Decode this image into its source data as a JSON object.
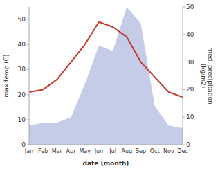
{
  "chart_data": {
    "type": "line",
    "categories": [
      "Jan",
      "Feb",
      "Mar",
      "Apr",
      "May",
      "Jun",
      "Jul",
      "Aug",
      "Sep",
      "Oct",
      "Nov",
      "Dec"
    ],
    "series": [
      {
        "type": "area",
        "axis": "y2",
        "color": "#c5cce8",
        "values": [
          7,
          8,
          8,
          10,
          22,
          36,
          34,
          50,
          44,
          14,
          7,
          6
        ]
      },
      {
        "type": "line",
        "color": "#c0392b",
        "values": [
          21,
          22,
          26,
          33,
          40,
          49,
          47,
          43,
          33,
          27,
          21,
          19
        ]
      }
    ],
    "xlabel": "date (month)",
    "ylabel": "max temp (C)",
    "y2label": "med. precipitation\n(kg/m2)",
    "ylim": [
      0,
      55
    ],
    "yticks": [
      0,
      10,
      20,
      30,
      40,
      50
    ],
    "y2lim": [
      0,
      50
    ],
    "y2ticks": [
      0,
      10,
      20,
      30,
      40,
      50
    ],
    "grid": false
  }
}
